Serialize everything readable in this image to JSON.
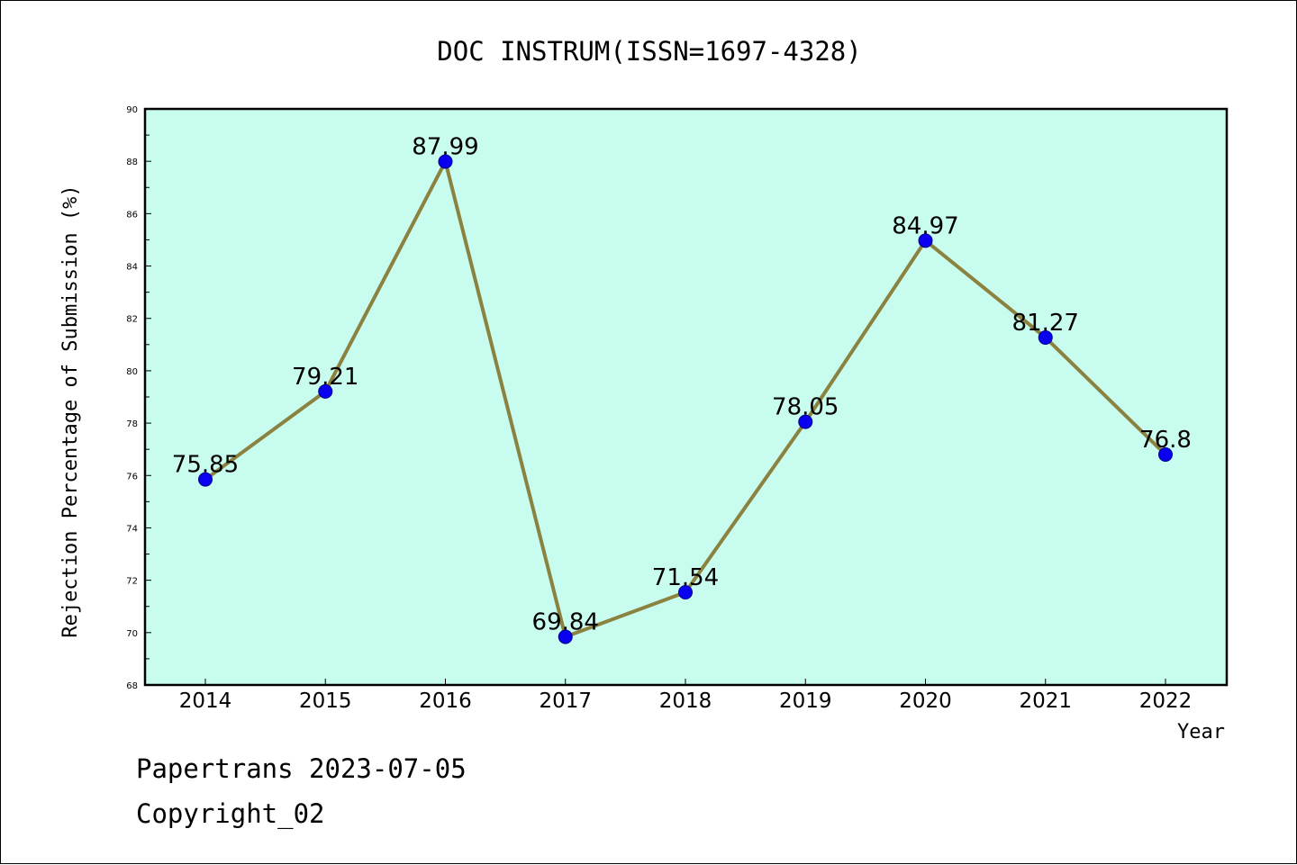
{
  "colors": {
    "plot_background": "#c8fcee",
    "line": "#8b8240",
    "marker": "#0a00f0",
    "marker_edge": "#00008b",
    "axis": "#000000"
  },
  "footer": {
    "line1": "Papertrans 2023-07-05",
    "line2": "Copyright_02"
  },
  "chart_data": {
    "type": "line",
    "title": "DOC INSTRUM(ISSN=1697-4328)",
    "xlabel": "Year",
    "ylabel": "Rejection Percentage of Submission (%)",
    "categories": [
      "2014",
      "2015",
      "2016",
      "2017",
      "2018",
      "2019",
      "2020",
      "2021",
      "2022"
    ],
    "values": [
      75.85,
      79.21,
      87.99,
      69.84,
      71.54,
      78.05,
      84.97,
      81.27,
      76.8
    ],
    "data_labels": [
      "75.85",
      "79.21",
      "87.99",
      "69.84",
      "71.54",
      "78.05",
      "84.97",
      "81.27",
      "76.8"
    ],
    "ylim": [
      68,
      90
    ],
    "yticks": [
      "68",
      "70",
      "72",
      "74",
      "76",
      "78",
      "80",
      "82",
      "84",
      "86",
      "88",
      "90"
    ],
    "grid": false,
    "legend": "none"
  }
}
